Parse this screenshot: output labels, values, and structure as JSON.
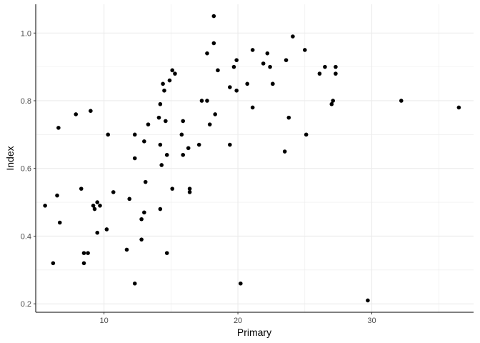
{
  "chart_data": {
    "type": "scatter",
    "xlabel": "Primary",
    "ylabel": "Index",
    "xlim": [
      4.9,
      37.6
    ],
    "ylim": [
      0.175,
      1.085
    ],
    "x_ticks": [
      10,
      20,
      30
    ],
    "y_ticks": [
      0.2,
      0.4,
      0.6,
      0.8,
      1.0
    ],
    "x_tick_labels": [
      "10",
      "20",
      "30"
    ],
    "y_tick_labels": [
      "0.2",
      "0.4",
      "0.6",
      "0.8",
      "1.0"
    ],
    "grid": true,
    "legend": "none",
    "point_color": "#000000",
    "grid_color": "#ebebeb",
    "points": [
      {
        "x": 5.6,
        "y": 0.49
      },
      {
        "x": 6.2,
        "y": 0.32
      },
      {
        "x": 6.6,
        "y": 0.72
      },
      {
        "x": 6.5,
        "y": 0.52
      },
      {
        "x": 6.7,
        "y": 0.44
      },
      {
        "x": 7.9,
        "y": 0.76
      },
      {
        "x": 8.3,
        "y": 0.54
      },
      {
        "x": 8.5,
        "y": 0.35
      },
      {
        "x": 8.5,
        "y": 0.32
      },
      {
        "x": 8.8,
        "y": 0.35
      },
      {
        "x": 9.0,
        "y": 0.77
      },
      {
        "x": 9.2,
        "y": 0.49
      },
      {
        "x": 9.3,
        "y": 0.48
      },
      {
        "x": 9.5,
        "y": 0.5
      },
      {
        "x": 9.5,
        "y": 0.41
      },
      {
        "x": 9.7,
        "y": 0.49
      },
      {
        "x": 10.2,
        "y": 0.42
      },
      {
        "x": 10.3,
        "y": 0.7
      },
      {
        "x": 10.7,
        "y": 0.53
      },
      {
        "x": 11.7,
        "y": 0.36
      },
      {
        "x": 11.9,
        "y": 0.51
      },
      {
        "x": 12.3,
        "y": 0.7
      },
      {
        "x": 12.3,
        "y": 0.63
      },
      {
        "x": 12.3,
        "y": 0.26
      },
      {
        "x": 12.8,
        "y": 0.39
      },
      {
        "x": 12.8,
        "y": 0.45
      },
      {
        "x": 13.0,
        "y": 0.68
      },
      {
        "x": 13.0,
        "y": 0.47
      },
      {
        "x": 13.1,
        "y": 0.56
      },
      {
        "x": 13.3,
        "y": 0.73
      },
      {
        "x": 14.1,
        "y": 0.75
      },
      {
        "x": 14.2,
        "y": 0.79
      },
      {
        "x": 14.2,
        "y": 0.67
      },
      {
        "x": 14.3,
        "y": 0.61
      },
      {
        "x": 14.2,
        "y": 0.48
      },
      {
        "x": 14.4,
        "y": 0.85
      },
      {
        "x": 14.5,
        "y": 0.83
      },
      {
        "x": 14.6,
        "y": 0.74
      },
      {
        "x": 14.7,
        "y": 0.64
      },
      {
        "x": 14.7,
        "y": 0.35
      },
      {
        "x": 14.9,
        "y": 0.86
      },
      {
        "x": 15.1,
        "y": 0.89
      },
      {
        "x": 15.1,
        "y": 0.54
      },
      {
        "x": 15.3,
        "y": 0.88
      },
      {
        "x": 15.8,
        "y": 0.7
      },
      {
        "x": 15.9,
        "y": 0.74
      },
      {
        "x": 15.9,
        "y": 0.64
      },
      {
        "x": 16.3,
        "y": 0.66
      },
      {
        "x": 16.4,
        "y": 0.54
      },
      {
        "x": 16.4,
        "y": 0.53
      },
      {
        "x": 17.1,
        "y": 0.67
      },
      {
        "x": 17.3,
        "y": 0.8
      },
      {
        "x": 17.7,
        "y": 0.94
      },
      {
        "x": 17.7,
        "y": 0.8
      },
      {
        "x": 17.9,
        "y": 0.73
      },
      {
        "x": 18.2,
        "y": 0.97
      },
      {
        "x": 18.2,
        "y": 1.05
      },
      {
        "x": 18.3,
        "y": 0.76
      },
      {
        "x": 18.5,
        "y": 0.89
      },
      {
        "x": 19.4,
        "y": 0.84
      },
      {
        "x": 19.4,
        "y": 0.67
      },
      {
        "x": 19.7,
        "y": 0.9
      },
      {
        "x": 19.9,
        "y": 0.83
      },
      {
        "x": 19.9,
        "y": 0.92
      },
      {
        "x": 20.2,
        "y": 0.26
      },
      {
        "x": 20.7,
        "y": 0.85
      },
      {
        "x": 21.1,
        "y": 0.95
      },
      {
        "x": 21.1,
        "y": 0.78
      },
      {
        "x": 21.9,
        "y": 0.91
      },
      {
        "x": 22.2,
        "y": 0.94
      },
      {
        "x": 22.4,
        "y": 0.9
      },
      {
        "x": 22.6,
        "y": 0.85
      },
      {
        "x": 22.6,
        "y": 0.85
      },
      {
        "x": 23.5,
        "y": 0.65
      },
      {
        "x": 23.6,
        "y": 0.92
      },
      {
        "x": 23.8,
        "y": 0.75
      },
      {
        "x": 24.1,
        "y": 0.99
      },
      {
        "x": 25.0,
        "y": 0.95
      },
      {
        "x": 25.1,
        "y": 0.7
      },
      {
        "x": 26.1,
        "y": 0.88
      },
      {
        "x": 26.5,
        "y": 0.9
      },
      {
        "x": 27.0,
        "y": 0.79
      },
      {
        "x": 27.1,
        "y": 0.8
      },
      {
        "x": 27.3,
        "y": 0.9
      },
      {
        "x": 27.3,
        "y": 0.88
      },
      {
        "x": 29.7,
        "y": 0.21
      },
      {
        "x": 32.2,
        "y": 0.8
      },
      {
        "x": 36.5,
        "y": 0.78
      }
    ]
  }
}
